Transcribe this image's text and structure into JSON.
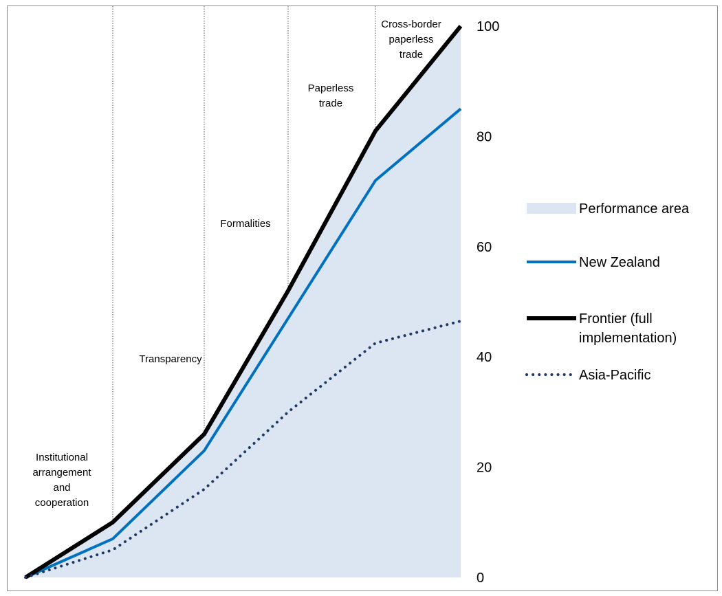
{
  "chart_data": {
    "type": "line",
    "categories": [
      [
        "Institutional",
        "arrangement",
        "and",
        "cooperation"
      ],
      [
        "Transparency"
      ],
      [
        "Formalities"
      ],
      [
        "Paperless",
        "trade"
      ],
      [
        "Cross-border",
        "paperless",
        "trade"
      ]
    ],
    "x": [
      0,
      1,
      2,
      3,
      4,
      5
    ],
    "ylim": [
      0,
      100
    ],
    "yticks": [
      0,
      20,
      40,
      60,
      80,
      100
    ],
    "y_axis_side": "right",
    "grid": "vertical dotted lines at category boundaries",
    "series": [
      {
        "name": "Performance area",
        "kind": "area",
        "color": "#dce6f2",
        "values": [
          0,
          10,
          26,
          52,
          81,
          100
        ]
      },
      {
        "name": "New Zealand",
        "kind": "line",
        "color": "#0070c0",
        "style": "solid",
        "values": [
          0,
          7,
          23,
          47,
          72,
          85
        ]
      },
      {
        "name": "Frontier (full implementation)",
        "kind": "line",
        "color": "#000000",
        "style": "solid-thick",
        "values": [
          0,
          10,
          26,
          52,
          81,
          100
        ]
      },
      {
        "name": "Asia-Pacific",
        "kind": "line",
        "color": "#1f3864",
        "style": "dotted",
        "values": [
          0,
          5,
          16,
          30,
          42.5,
          46.5
        ]
      }
    ],
    "legend": {
      "position": "right",
      "entries": [
        [
          "Performance area"
        ],
        [
          "New Zealand"
        ],
        [
          "Frontier (full",
          "implementation)"
        ],
        [
          "Asia-Pacific"
        ]
      ]
    }
  }
}
